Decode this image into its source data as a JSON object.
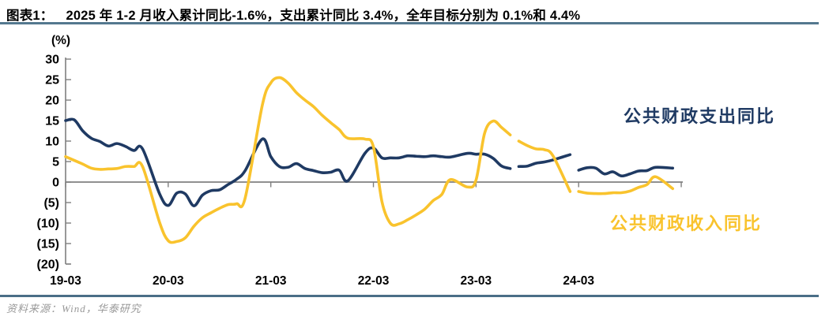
{
  "header": {
    "figure_label": "图表1：",
    "title": "2025 年 1-2 月收入累计同比-1.6%，支出累计同比 3.4%，全年目标分别为 0.1%和 4.4%"
  },
  "footer": {
    "source": "资料来源：Wind，华泰研究"
  },
  "colors": {
    "title_text": "#000000",
    "top_rule": "#54788F",
    "bottom_rule": "#4A6E87",
    "axis": "#7F7F7F",
    "zero_line": "#808080",
    "tick_text": "#000000",
    "source_text": "#999999"
  },
  "chart_data": {
    "type": "line",
    "unit_label": "(%)",
    "ylim": [
      -20,
      30
    ],
    "grid": false,
    "yticks": [
      {
        "v": 30,
        "label": "30"
      },
      {
        "v": 25,
        "label": "25"
      },
      {
        "v": 20,
        "label": "20"
      },
      {
        "v": 15,
        "label": "15"
      },
      {
        "v": 10,
        "label": "10"
      },
      {
        "v": 5,
        "label": "5"
      },
      {
        "v": 0,
        "label": "0"
      },
      {
        "v": -5,
        "label": "(5)"
      },
      {
        "v": -10,
        "label": "(10)"
      },
      {
        "v": -15,
        "label": "(15)"
      },
      {
        "v": -20,
        "label": "(20)"
      }
    ],
    "xticks": [
      {
        "m": "19-03",
        "label": "19-03"
      },
      {
        "m": "20-03",
        "label": "20-03"
      },
      {
        "m": "21-03",
        "label": "21-03"
      },
      {
        "m": "22-03",
        "label": "22-03"
      },
      {
        "m": "23-03",
        "label": "23-03"
      },
      {
        "m": "24-03",
        "label": "24-03"
      },
      {
        "m": "25-03",
        "label": ""
      }
    ],
    "legend": [
      {
        "name": "公共财政支出同比",
        "position": "upper-right"
      },
      {
        "name": "公共财政收入同比",
        "position": "lower-right"
      }
    ],
    "series": [
      {
        "name": "公共财政支出同比",
        "color": "#1F3A63",
        "segments": [
          [
            [
              "19-03",
              15.0
            ],
            [
              "19-04",
              15.2
            ],
            [
              "19-05",
              12.5
            ],
            [
              "19-06",
              10.7
            ],
            [
              "19-07",
              9.9
            ],
            [
              "19-08",
              8.8
            ],
            [
              "19-09",
              9.4
            ],
            [
              "19-10",
              8.7
            ],
            [
              "19-11",
              7.7
            ],
            [
              "19-12",
              8.1
            ],
            [
              "20-02",
              -2.9
            ],
            [
              "20-03",
              -5.7
            ],
            [
              "20-04",
              -2.7
            ],
            [
              "20-05",
              -2.9
            ],
            [
              "20-06",
              -5.8
            ],
            [
              "20-07",
              -3.2
            ],
            [
              "20-08",
              -2.1
            ],
            [
              "20-09",
              -1.9
            ],
            [
              "20-10",
              -0.6
            ],
            [
              "20-11",
              0.7
            ],
            [
              "20-12",
              2.8
            ],
            [
              "21-02",
              10.5
            ],
            [
              "21-03",
              6.2
            ],
            [
              "21-04",
              3.8
            ],
            [
              "21-05",
              3.6
            ],
            [
              "21-06",
              4.5
            ],
            [
              "21-07",
              3.3
            ],
            [
              "21-08",
              2.8
            ],
            [
              "21-09",
              2.3
            ],
            [
              "21-10",
              2.4
            ],
            [
              "21-11",
              2.9
            ],
            [
              "21-12",
              0.3
            ],
            [
              "22-02",
              7.0
            ],
            [
              "22-03",
              8.3
            ],
            [
              "22-04",
              5.9
            ],
            [
              "22-05",
              5.9
            ],
            [
              "22-06",
              5.9
            ],
            [
              "22-07",
              6.4
            ],
            [
              "22-08",
              6.3
            ],
            [
              "22-09",
              6.2
            ],
            [
              "22-10",
              6.4
            ],
            [
              "22-11",
              6.2
            ],
            [
              "22-12",
              6.1
            ],
            [
              "23-02",
              7.0
            ],
            [
              "23-03",
              6.8
            ],
            [
              "23-04",
              6.8
            ],
            [
              "23-05",
              5.8
            ],
            [
              "23-06",
              3.9
            ],
            [
              "23-07",
              3.3
            ]
          ],
          [
            [
              "23-08",
              3.8
            ],
            [
              "23-09",
              3.9
            ],
            [
              "23-10",
              4.6
            ],
            [
              "23-11",
              4.9
            ],
            [
              "23-12",
              5.4
            ],
            [
              "24-02",
              6.7
            ]
          ],
          [
            [
              "24-03",
              2.9
            ],
            [
              "24-04",
              3.5
            ],
            [
              "24-05",
              3.4
            ],
            [
              "24-06",
              2.0
            ],
            [
              "24-07",
              2.5
            ],
            [
              "24-08",
              1.5
            ],
            [
              "24-09",
              2.0
            ],
            [
              "24-10",
              2.7
            ],
            [
              "24-11",
              2.8
            ],
            [
              "24-12",
              3.6
            ],
            [
              "25-02",
              3.4
            ]
          ]
        ]
      },
      {
        "name": "公共财政收入同比",
        "color": "#F9C32D",
        "segments": [
          [
            [
              "19-03",
              6.2
            ],
            [
              "19-04",
              5.3
            ],
            [
              "19-05",
              4.4
            ],
            [
              "19-06",
              3.4
            ],
            [
              "19-07",
              3.1
            ],
            [
              "19-08",
              3.2
            ],
            [
              "19-09",
              3.3
            ],
            [
              "19-10",
              3.8
            ],
            [
              "19-11",
              3.8
            ],
            [
              "19-12",
              3.8
            ],
            [
              "20-02",
              -9.9
            ],
            [
              "20-03",
              -14.3
            ],
            [
              "20-04",
              -14.5
            ],
            [
              "20-05",
              -13.6
            ],
            [
              "20-06",
              -10.8
            ],
            [
              "20-07",
              -8.7
            ],
            [
              "20-08",
              -7.5
            ],
            [
              "20-09",
              -6.4
            ],
            [
              "20-10",
              -5.5
            ],
            [
              "20-11",
              -5.3
            ],
            [
              "20-12",
              -3.9
            ],
            [
              "21-02",
              18.7
            ],
            [
              "21-03",
              24.2
            ],
            [
              "21-04",
              25.5
            ],
            [
              "21-05",
              24.2
            ],
            [
              "21-06",
              21.8
            ],
            [
              "21-07",
              20.0
            ],
            [
              "21-08",
              18.4
            ],
            [
              "21-09",
              16.3
            ],
            [
              "21-10",
              14.5
            ],
            [
              "21-11",
              12.8
            ],
            [
              "21-12",
              10.7
            ],
            [
              "22-02",
              10.5
            ],
            [
              "22-03",
              8.6
            ],
            [
              "22-04",
              -4.8
            ],
            [
              "22-05",
              -10.1
            ],
            [
              "22-06",
              -10.2
            ],
            [
              "22-07",
              -9.2
            ],
            [
              "22-08",
              -8.0
            ],
            [
              "22-09",
              -6.6
            ],
            [
              "22-10",
              -4.5
            ],
            [
              "22-11",
              -3.0
            ],
            [
              "22-12",
              0.6
            ],
            [
              "23-02",
              -1.2
            ],
            [
              "23-03",
              0.5
            ],
            [
              "23-04",
              11.9
            ],
            [
              "23-05",
              14.9
            ],
            [
              "23-06",
              13.3
            ],
            [
              "23-07",
              11.5
            ]
          ],
          [
            [
              "23-08",
              10.0
            ],
            [
              "23-09",
              8.9
            ],
            [
              "23-10",
              8.1
            ],
            [
              "23-11",
              7.9
            ],
            [
              "23-12",
              6.4
            ],
            [
              "24-02",
              -2.3
            ]
          ],
          [
            [
              "24-03",
              -2.3
            ],
            [
              "24-04",
              -2.7
            ],
            [
              "24-05",
              -2.8
            ],
            [
              "24-06",
              -2.8
            ],
            [
              "24-07",
              -2.6
            ],
            [
              "24-08",
              -2.6
            ],
            [
              "24-09",
              -2.2
            ],
            [
              "24-10",
              -1.3
            ],
            [
              "24-11",
              -0.6
            ],
            [
              "24-12",
              1.3
            ],
            [
              "25-02",
              -1.6
            ]
          ]
        ]
      }
    ]
  }
}
